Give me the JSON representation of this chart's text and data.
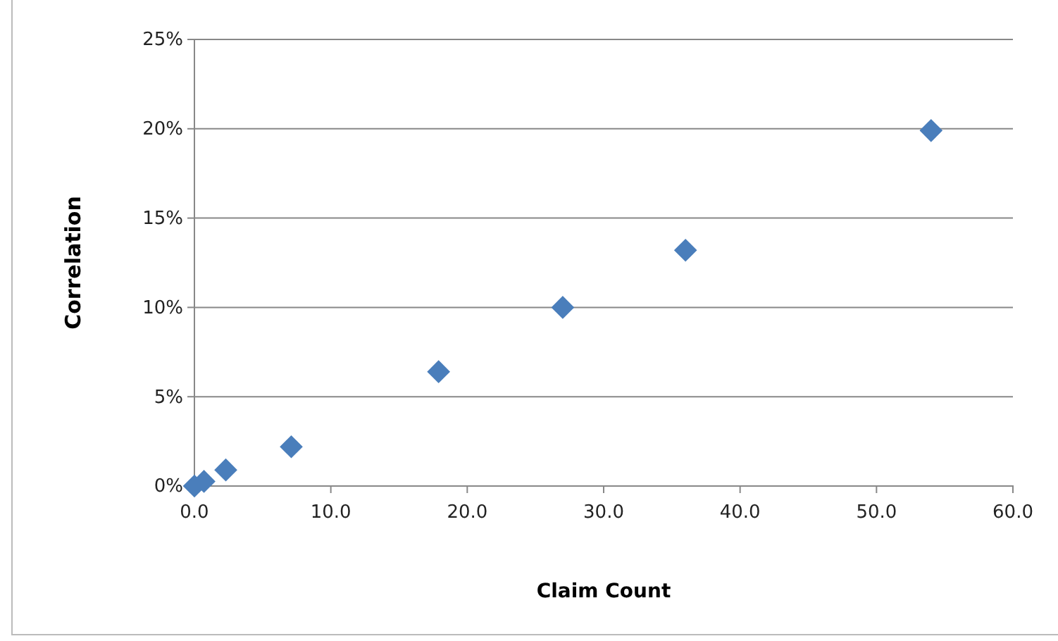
{
  "chart_data": {
    "type": "scatter",
    "xlabel": "Claim Count",
    "ylabel": "Correlation",
    "x": [
      0,
      0.7,
      2.3,
      7.1,
      17.9,
      27.0,
      36.0,
      54.0
    ],
    "series": [
      {
        "color": "#4a7ebb",
        "values": [
          0,
          0.26,
          0.9,
          2.2,
          6.4,
          10.0,
          13.2,
          19.9
        ]
      }
    ],
    "xlim": [
      0,
      60
    ],
    "xticks": [
      {
        "value": 0,
        "label": "0.0"
      },
      {
        "value": 10,
        "label": "10.0"
      },
      {
        "value": 20,
        "label": "20.0"
      },
      {
        "value": 30,
        "label": "30.0"
      },
      {
        "value": 40,
        "label": "40.0"
      },
      {
        "value": 50,
        "label": "50.0"
      },
      {
        "value": 60,
        "label": "60.0"
      }
    ],
    "ylim": [
      0,
      25
    ],
    "yticks": [
      {
        "value": 0,
        "label": "0%"
      },
      {
        "value": 5,
        "label": "5%"
      },
      {
        "value": 10,
        "label": "10%"
      },
      {
        "value": 15,
        "label": "15%"
      },
      {
        "value": 20,
        "label": "20%"
      },
      {
        "value": 25,
        "label": "25%"
      }
    ],
    "grid": "y",
    "marker": "diamond"
  }
}
